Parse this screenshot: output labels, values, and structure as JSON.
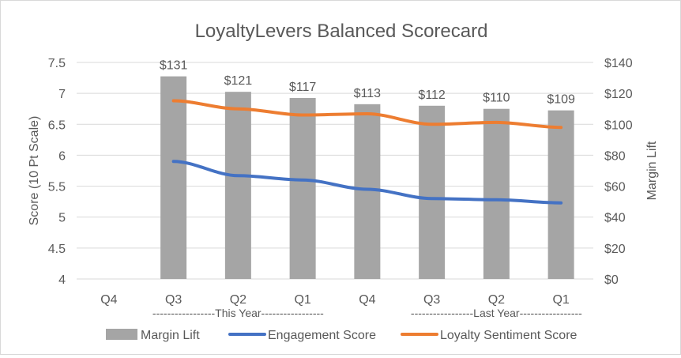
{
  "chart_data": {
    "type": "bar",
    "title": "LoyaltyLevers Balanced Scorecard",
    "categories": [
      "Q4",
      "Q3",
      "Q2",
      "Q1",
      "Q4",
      "Q3",
      "Q2",
      "Q1"
    ],
    "group_labels": [
      "-----------------This Year-----------------",
      "-----------------Last Year-----------------"
    ],
    "ylabel_left": "Score (10 Pt Scale)",
    "ylabel_right": "Margin Lift",
    "ylim_left": [
      4,
      7.5
    ],
    "ylim_right": [
      0,
      140
    ],
    "yticks_left": [
      "4",
      "4.5",
      "5",
      "5.5",
      "6",
      "6.5",
      "7",
      "7.5"
    ],
    "yticks_right": [
      "$0",
      "$20",
      "$40",
      "$60",
      "$80",
      "$100",
      "$120",
      "$140"
    ],
    "grid": true,
    "legend_position": "bottom",
    "series": [
      {
        "name": "Margin Lift",
        "type": "bar",
        "axis": "right",
        "color": "#a5a5a5",
        "values": [
          null,
          131,
          121,
          117,
          113,
          112,
          110,
          109
        ],
        "labels": [
          "",
          "$131",
          "$121",
          "$117",
          "$113",
          "$112",
          "$110",
          "$109"
        ]
      },
      {
        "name": "Engagement Score",
        "type": "line",
        "axis": "left",
        "color": "#4472c4",
        "values": [
          null,
          5.9,
          5.67,
          5.6,
          5.45,
          5.3,
          5.28,
          5.23
        ]
      },
      {
        "name": "Loyalty Sentiment Score",
        "type": "line",
        "axis": "left",
        "color": "#ed7d31",
        "values": [
          null,
          6.88,
          6.75,
          6.65,
          6.67,
          6.5,
          6.53,
          6.45
        ]
      }
    ]
  }
}
